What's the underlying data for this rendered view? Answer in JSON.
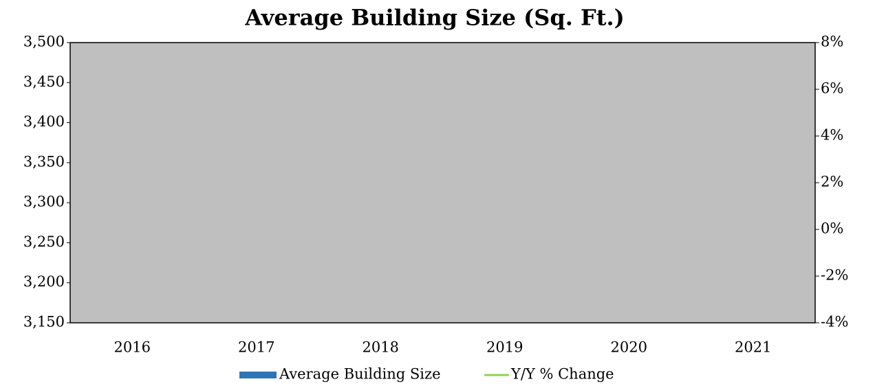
{
  "chart_data": {
    "type": "bar",
    "title": "Average Building Size (Sq. Ft.)",
    "categories": [
      "2016",
      "2017",
      "2018",
      "2019",
      "2020",
      "2021"
    ],
    "series": [
      {
        "name": "Average Building Size",
        "color": "#2e75b6",
        "values": [
          null,
          null,
          null,
          null,
          null,
          null
        ]
      },
      {
        "name": "Y/Y % Change",
        "color": "#92d050",
        "type": "line",
        "axis": "y2",
        "values": [
          null,
          null,
          null,
          null,
          null,
          null
        ]
      }
    ],
    "ylim": [
      3150,
      3500
    ],
    "yticks": [
      {
        "value": 3150,
        "label": "3,150"
      },
      {
        "value": 3200,
        "label": "3,200"
      },
      {
        "value": 3250,
        "label": "3,250"
      },
      {
        "value": 3300,
        "label": "3,300"
      },
      {
        "value": 3350,
        "label": "3,350"
      },
      {
        "value": 3400,
        "label": "3,400"
      },
      {
        "value": 3450,
        "label": "3,450"
      },
      {
        "value": 3500,
        "label": "3,500"
      }
    ],
    "y2lim": [
      -4,
      8
    ],
    "y2ticks": [
      {
        "value": -4,
        "label": "-4%"
      },
      {
        "value": -2,
        "label": "-2%"
      },
      {
        "value": 0,
        "label": "0%"
      },
      {
        "value": 2,
        "label": "2%"
      },
      {
        "value": 4,
        "label": "4%"
      },
      {
        "value": 6,
        "label": "6%"
      },
      {
        "value": 8,
        "label": "8%"
      }
    ],
    "plot_background": "#bfbfbf",
    "legend": "bottom"
  }
}
